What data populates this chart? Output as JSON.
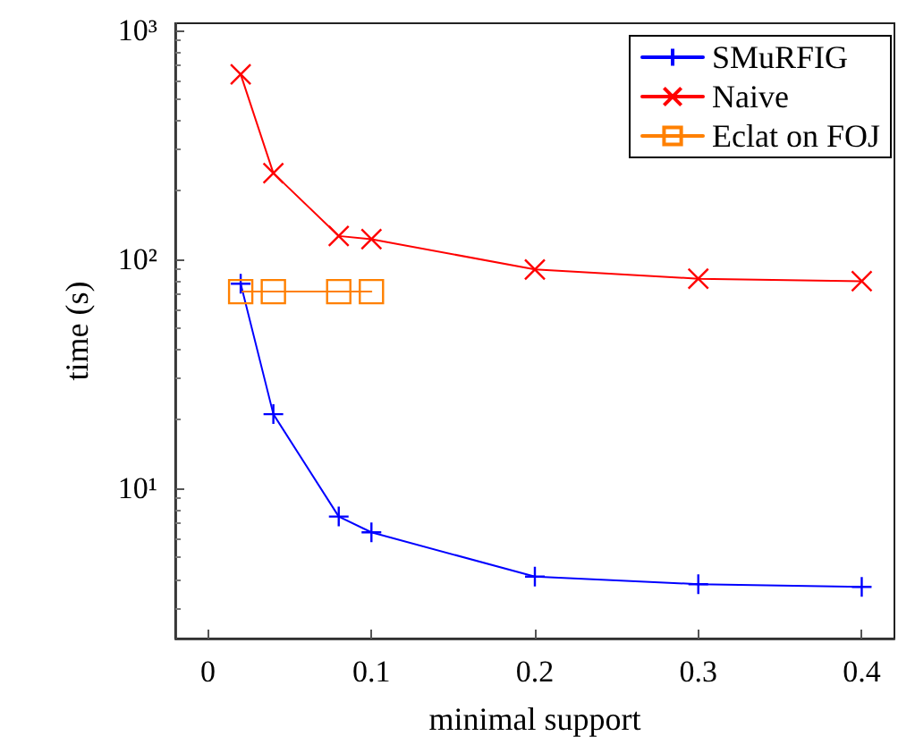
{
  "chart_data": {
    "type": "line",
    "xlabel": "minimal support",
    "ylabel": "time (s)",
    "log": "y",
    "grid": false,
    "legend": "top right",
    "xlim": [
      -0.02,
      0.42
    ],
    "xticks": [
      0,
      0.1,
      0.2,
      0.3,
      0.4
    ],
    "ylim": [
      2.2,
      1070
    ],
    "yticks": [
      {
        "value": 10,
        "label": "10¹"
      },
      {
        "value": 100,
        "label": "10²"
      },
      {
        "value": 1000,
        "label": "10³"
      }
    ],
    "series": [
      {
        "name": "SMuRFIG",
        "color": "#0000ff",
        "marker": "plus",
        "x": [
          0.02,
          0.04,
          0.08,
          0.1,
          0.2,
          0.3,
          0.4
        ],
        "values": [
          78,
          21,
          7.5,
          6.4,
          4.1,
          3.8,
          3.7
        ]
      },
      {
        "name": "Naive",
        "color": "#ff0000",
        "marker": "cross",
        "x": [
          0.02,
          0.04,
          0.08,
          0.1,
          0.2,
          0.3,
          0.4
        ],
        "values": [
          640,
          237,
          126,
          122,
          90,
          82,
          80
        ]
      },
      {
        "name": "Eclat on FOJ",
        "color": "#ff8000",
        "marker": "square",
        "x": [
          0.02,
          0.04,
          0.08,
          0.1
        ],
        "values": [
          72,
          72,
          72,
          72
        ]
      }
    ]
  }
}
